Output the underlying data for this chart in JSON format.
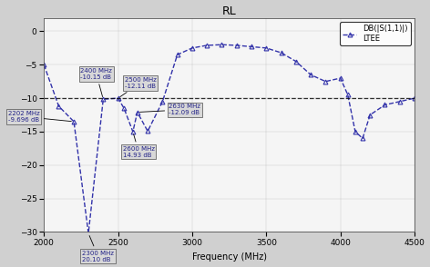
{
  "title": "RL",
  "xlabel": "Frequency (MHz)",
  "xlim": [
    2000,
    4500
  ],
  "ylim": [
    -30,
    2
  ],
  "yticks": [
    0,
    -5,
    -10,
    -15,
    -20,
    -25,
    -30
  ],
  "xticks": [
    2000,
    2500,
    3000,
    3500,
    4000,
    4500
  ],
  "dashed_line_y": -10,
  "frequencies": [
    2000,
    2100,
    2202,
    2300,
    2400,
    2500,
    2540,
    2600,
    2630,
    2700,
    2800,
    2900,
    3000,
    3100,
    3200,
    3300,
    3400,
    3500,
    3600,
    3700,
    3800,
    3900,
    4000,
    4050,
    4100,
    4150,
    4200,
    4300,
    4400,
    4500
  ],
  "return_loss": [
    -5.0,
    -11.2,
    -13.5,
    -30.2,
    -10.15,
    -10.0,
    -11.5,
    -15.0,
    -12.09,
    -14.93,
    -10.5,
    -3.5,
    -2.5,
    -2.1,
    -2.0,
    -2.1,
    -2.3,
    -2.5,
    -3.2,
    -4.5,
    -6.5,
    -7.5,
    -7.0,
    -9.5,
    -15.0,
    -16.0,
    -12.5,
    -11.0,
    -10.5,
    -10.0
  ],
  "line_color": "#3333aa",
  "marker": "^",
  "legend_label": "DB(|S(1,1)|)\nLTEE",
  "ann_box_color": "#d8d8d8",
  "ann_box_edge": "#666666",
  "ann_text_color": "#222288",
  "ann_fontsize": 5.0,
  "plot_bg": "#f5f5f5",
  "fig_bg": "#d0d0d0",
  "title_fontsize": 9,
  "xlabel_fontsize": 7,
  "tick_fontsize": 6.5
}
